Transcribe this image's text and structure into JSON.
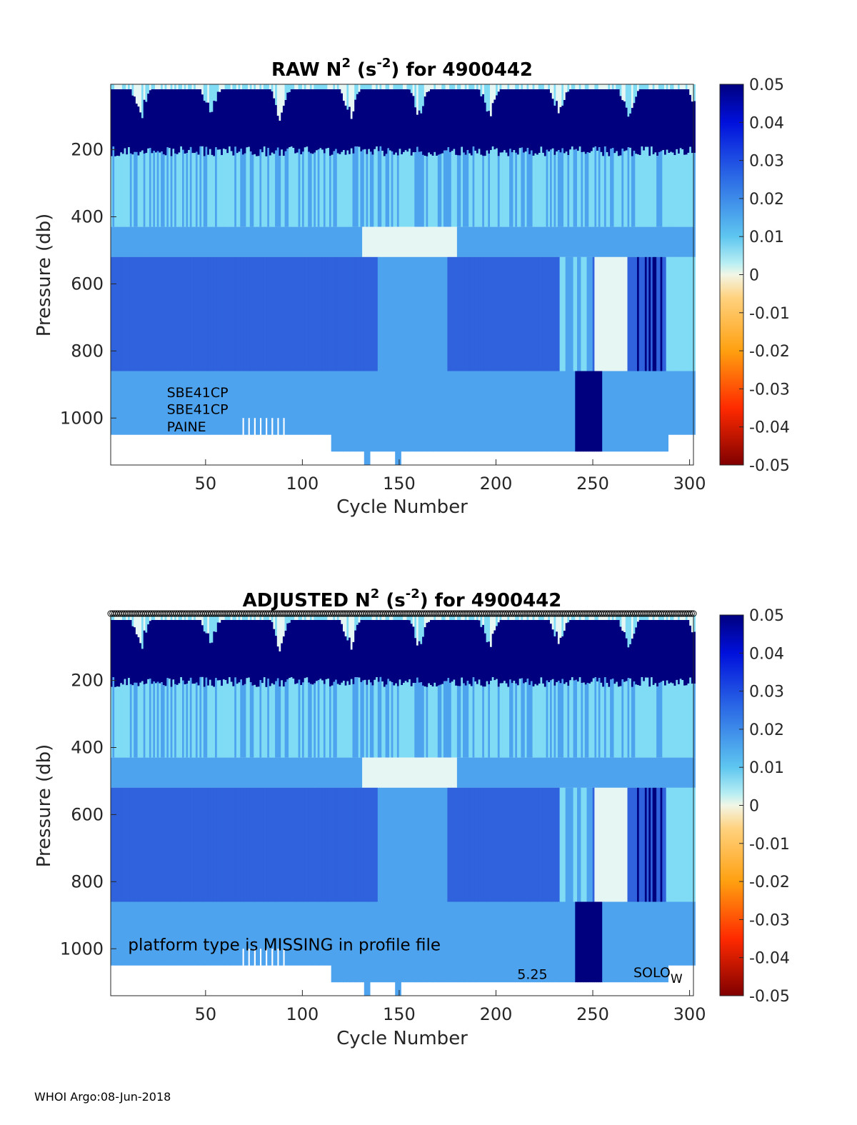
{
  "footer": "WHOI Argo:08-Jun-2018",
  "colors": {
    "deep_blue": "#00007f",
    "mid_blue": "#2f62dc",
    "light_blue": "#4ea3ee",
    "cyan": "#7fdcf4",
    "pale": "#e6f6f3",
    "warm": "#ffd27f",
    "red": "#ff2a00",
    "dark_red": "#800000"
  },
  "chart_data": [
    {
      "type": "heatmap",
      "title_main": "RAW N",
      "title_sup1": "2",
      "title_unit_open": " (s",
      "title_sup2": "-2",
      "title_rest": ") for 4900442",
      "xlabel": "Cycle Number",
      "ylabel": "Pressure (db)",
      "xlim": [
        1,
        302
      ],
      "ylim": [
        1140,
        5
      ],
      "xticks": [
        50,
        100,
        150,
        200,
        250,
        300
      ],
      "yticks": [
        200,
        400,
        600,
        800,
        1000
      ],
      "clim": [
        -0.05,
        0.05
      ],
      "cticks": [
        "0.05",
        "0.04",
        "0.03",
        "0.02",
        "0.01",
        "0",
        "-0.01",
        "-0.02",
        "-0.03",
        "-0.04",
        "-0.05"
      ],
      "annotations": [
        {
          "text": "SBE41CP",
          "x": 30,
          "y": 938
        },
        {
          "text": "SBE41CP",
          "x": 30,
          "y": 988
        },
        {
          "text": "PAINE",
          "x": 30,
          "y": 1040
        }
      ]
    },
    {
      "type": "heatmap",
      "title_main": "ADJUSTED N",
      "title_sup1": "2",
      "title_unit_open": " (s",
      "title_sup2": "-2",
      "title_rest": ") for 4900442",
      "xlabel": "Cycle Number",
      "ylabel": "Pressure (db)",
      "xlim": [
        1,
        302
      ],
      "ylim": [
        1140,
        5
      ],
      "xticks": [
        50,
        100,
        150,
        200,
        250,
        300
      ],
      "yticks": [
        200,
        400,
        600,
        800,
        1000
      ],
      "clim": [
        -0.05,
        0.05
      ],
      "cticks": [
        "0.05",
        "0.04",
        "0.03",
        "0.02",
        "0.01",
        "0",
        "-0.01",
        "-0.02",
        "-0.03",
        "-0.04",
        "-0.05"
      ],
      "annotations": [
        {
          "text": "platform type is MISSING in profile file",
          "x": 10,
          "y": 1005
        },
        {
          "text": "5.25",
          "x": 211,
          "y": 1090
        }
      ],
      "solo_label": {
        "main": "SOLO",
        "sub": "W",
        "x": 271,
        "y": 1085
      },
      "qc_marker_row": {
        "symbol": "circle",
        "from_cycle": 1,
        "to_cycle": 302,
        "pressure": 0
      }
    }
  ]
}
